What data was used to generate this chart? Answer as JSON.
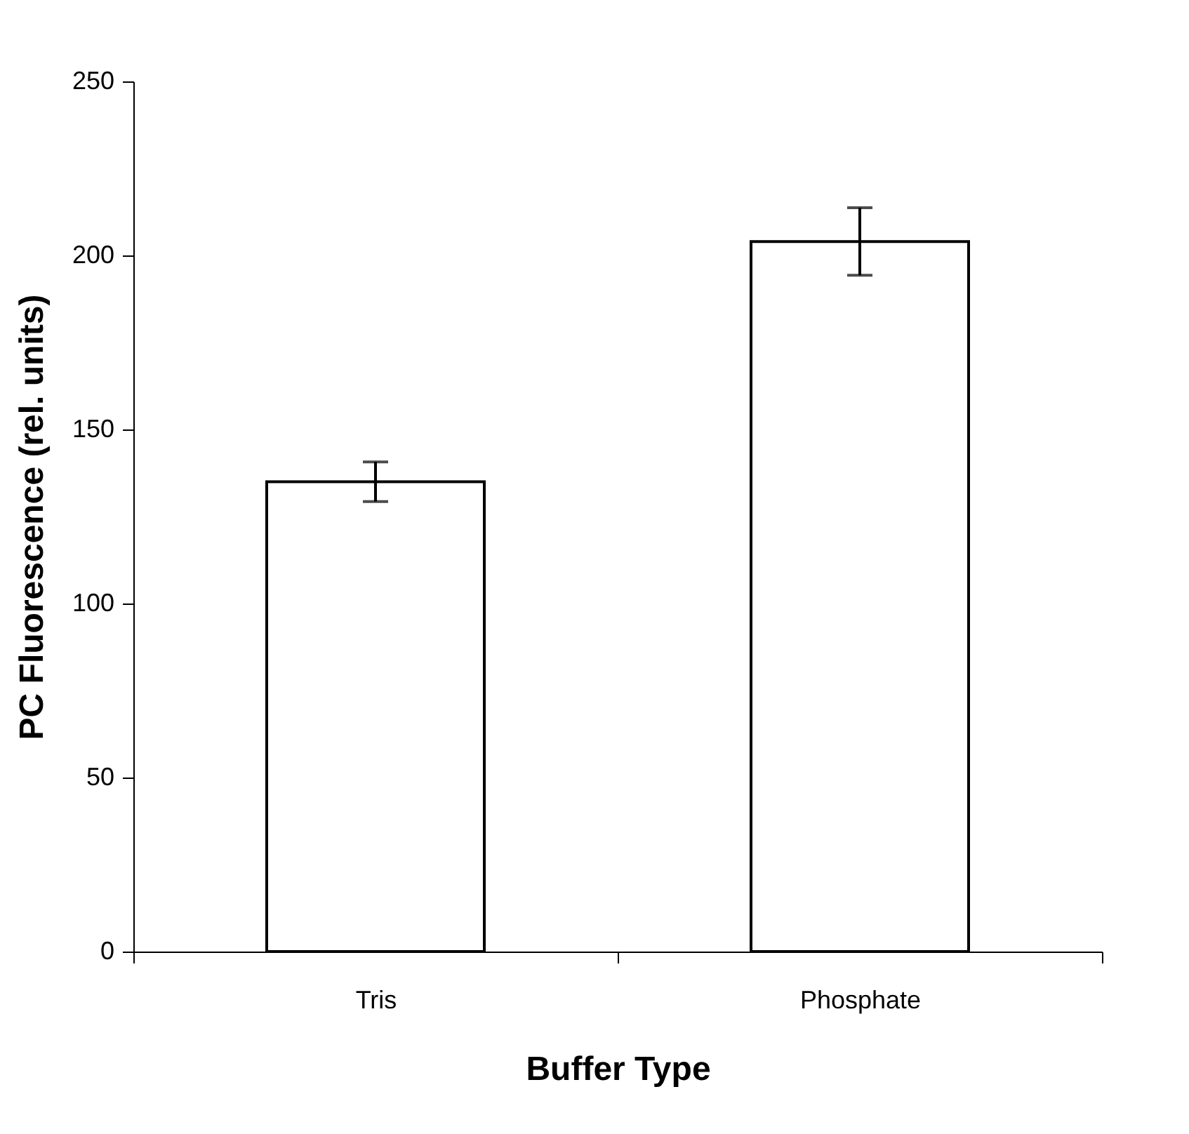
{
  "chart_data": {
    "type": "bar",
    "xlabel": "Buffer Type",
    "ylabel": "PC Fluorescence (rel. units)",
    "categories": [
      "Tris",
      "Phosphate"
    ],
    "values": [
      135,
      204
    ],
    "errors": [
      5.7,
      9.7
    ],
    "color": "#ffffff",
    "ylim": [
      0,
      250
    ],
    "yticks": [
      0,
      50,
      100,
      150,
      200,
      250
    ],
    "grid": false
  }
}
